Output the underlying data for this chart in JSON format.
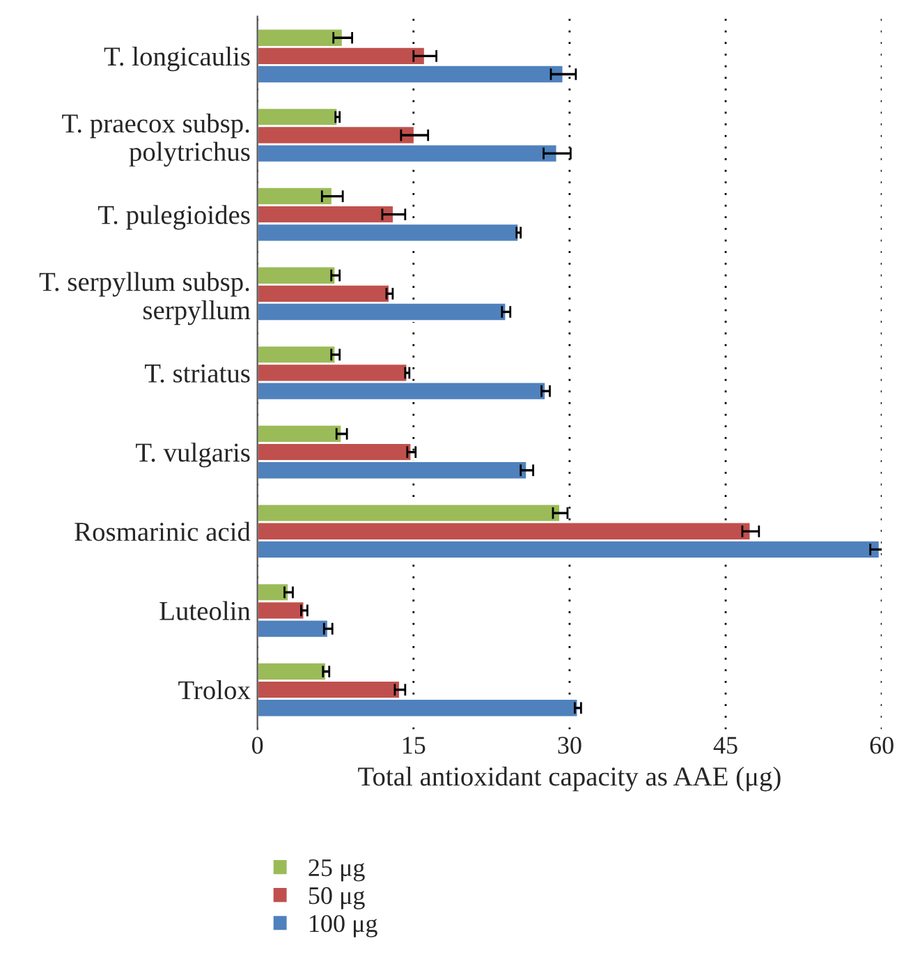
{
  "chart_data": {
    "type": "bar",
    "orientation": "horizontal",
    "xlabel": "Total antioxidant capacity as AAE (μg)",
    "categories": [
      "T. longicaulis",
      "T. praecox subsp.\npolytrichus",
      "T. pulegioides",
      "T. serpyllum subsp.\nserpyllum",
      "T. striatus",
      "T. vulgaris",
      "Rosmarinic acid",
      "Luteolin",
      "Trolox"
    ],
    "series": [
      {
        "name": "25 μg",
        "color": "#9bbb59",
        "values": [
          8.2,
          7.7,
          7.2,
          7.5,
          7.5,
          8.1,
          29.1,
          3.0,
          6.6
        ],
        "errors": [
          0.9,
          0.2,
          1.0,
          0.4,
          0.4,
          0.5,
          0.7,
          0.4,
          0.3
        ]
      },
      {
        "name": "50 μg",
        "color": "#c0504d",
        "values": [
          16.1,
          15.1,
          13.1,
          12.7,
          14.4,
          14.8,
          47.4,
          4.5,
          13.7
        ],
        "errors": [
          1.1,
          1.3,
          1.1,
          0.3,
          0.2,
          0.4,
          0.8,
          0.3,
          0.5
        ]
      },
      {
        "name": "100 μg",
        "color": "#4f81bd",
        "values": [
          29.4,
          28.8,
          25.1,
          23.9,
          27.7,
          25.9,
          59.8,
          6.8,
          30.8
        ],
        "errors": [
          1.2,
          1.3,
          0.2,
          0.4,
          0.4,
          0.6,
          0.9,
          0.4,
          0.3
        ]
      }
    ],
    "xlim": [
      0,
      60
    ],
    "xticks": [
      0,
      15,
      30,
      45,
      60
    ],
    "grid": "x",
    "legend": "bottom left"
  }
}
